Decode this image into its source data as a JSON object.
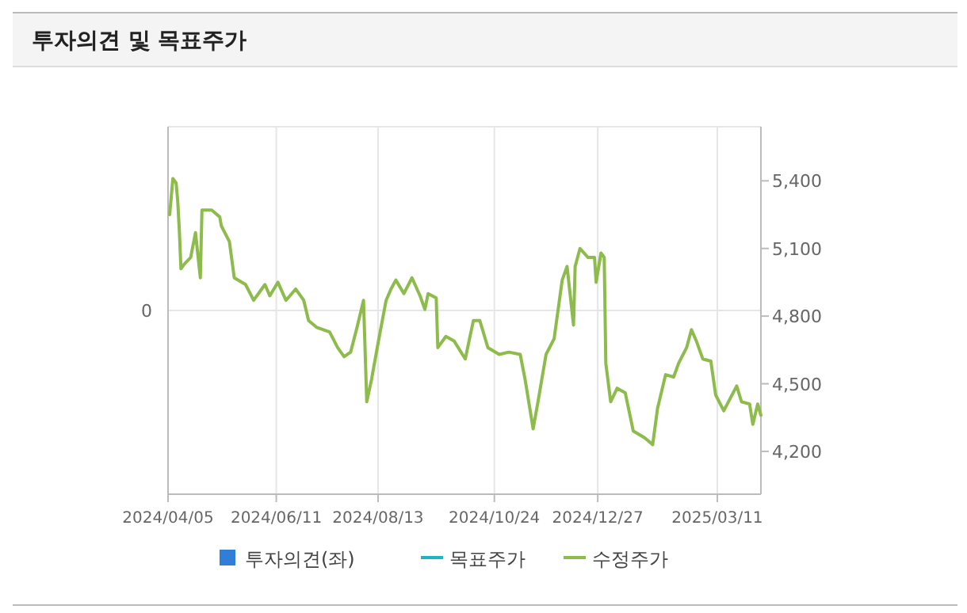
{
  "chart_data": {
    "type": "line",
    "title": "투자의견 및 목표주가",
    "xlim": [
      "2024-04-05",
      "2025-04-07"
    ],
    "xticks": [
      {
        "value": "2024-04-05",
        "label": "2024/04/05"
      },
      {
        "value": "2024-06-11",
        "label": "2024/06/11"
      },
      {
        "value": "2024-08-13",
        "label": "2024/08/13"
      },
      {
        "value": "2024-10-24",
        "label": "2024/10/24"
      },
      {
        "value": "2024-12-27",
        "label": "2024/12/27"
      },
      {
        "value": "2025-03-11",
        "label": "2025/03/11"
      }
    ],
    "annotations": [
      "0"
    ],
    "y2lim": [
      4010,
      5640
    ],
    "y2ticks": [
      {
        "value": 4200,
        "label": "4,200"
      },
      {
        "value": 4500,
        "label": "4,500"
      },
      {
        "value": 4800,
        "label": "4,800"
      },
      {
        "value": 5100,
        "label": "5,100"
      },
      {
        "value": 5400,
        "label": "5,400"
      }
    ],
    "grid": true,
    "legend": "bottom",
    "marker": "none",
    "line_style": "solid",
    "series": [
      {
        "name": "투자의견(좌)",
        "type": "bar",
        "color": "#2f7ed8",
        "axis": "y"
      },
      {
        "name": "목표주가",
        "color": "#1fb5c0",
        "axis": "y2"
      },
      {
        "name": "수정주가",
        "color": "#8dbb4c",
        "axis": "y2",
        "x": [
          "2024-04-06",
          "2024-04-08",
          "2024-04-10",
          "2024-04-11",
          "2024-04-12",
          "2024-04-13",
          "2024-04-15",
          "2024-04-19",
          "2024-04-22",
          "2024-04-25",
          "2024-04-26",
          "2024-04-29",
          "2024-05-02",
          "2024-05-07",
          "2024-05-08",
          "2024-05-13",
          "2024-05-16",
          "2024-05-23",
          "2024-05-28",
          "2024-06-04",
          "2024-06-07",
          "2024-06-12",
          "2024-06-17",
          "2024-06-23",
          "2024-06-28",
          "2024-07-01",
          "2024-07-06",
          "2024-07-14",
          "2024-07-19",
          "2024-07-23",
          "2024-07-27",
          "2024-07-31",
          "2024-08-04",
          "2024-08-06",
          "2024-08-09",
          "2024-08-13",
          "2024-08-18",
          "2024-08-21",
          "2024-08-24",
          "2024-08-29",
          "2024-09-03",
          "2024-09-08",
          "2024-09-11",
          "2024-09-13",
          "2024-09-18",
          "2024-09-19",
          "2024-09-24",
          "2024-09-29",
          "2024-10-06",
          "2024-10-11",
          "2024-10-15",
          "2024-10-20",
          "2024-10-27",
          "2024-11-02",
          "2024-11-09",
          "2024-11-12",
          "2024-11-17",
          "2024-11-20",
          "2024-11-25",
          "2024-11-30",
          "2024-12-05",
          "2024-12-08",
          "2024-12-12",
          "2024-12-13",
          "2024-12-16",
          "2024-12-21",
          "2024-12-25",
          "2024-12-26",
          "2024-12-29",
          "2024-12-31",
          "2025-01-01",
          "2025-01-04",
          "2025-01-08",
          "2025-01-13",
          "2025-01-18",
          "2025-01-25",
          "2025-01-30",
          "2025-02-02",
          "2025-02-07",
          "2025-02-12",
          "2025-02-15",
          "2025-02-20",
          "2025-02-23",
          "2025-02-26",
          "2025-03-02",
          "2025-03-07",
          "2025-03-10",
          "2025-03-15",
          "2025-03-23",
          "2025-03-26",
          "2025-03-31",
          "2025-04-02",
          "2025-04-05",
          "2025-04-07"
        ],
        "values": [
          5250,
          5410,
          5390,
          5310,
          5180,
          5010,
          5030,
          5060,
          5170,
          4970,
          5270,
          5270,
          5270,
          5240,
          5200,
          5130,
          4970,
          4940,
          4870,
          4940,
          4890,
          4950,
          4870,
          4920,
          4870,
          4780,
          4750,
          4730,
          4660,
          4620,
          4640,
          4750,
          4870,
          4420,
          4520,
          4680,
          4870,
          4920,
          4960,
          4900,
          4970,
          4890,
          4830,
          4900,
          4880,
          4660,
          4710,
          4690,
          4610,
          4780,
          4780,
          4660,
          4630,
          4640,
          4630,
          4520,
          4300,
          4420,
          4630,
          4700,
          4960,
          5020,
          4760,
          5020,
          5100,
          5060,
          5060,
          4950,
          5080,
          5060,
          4590,
          4420,
          4480,
          4460,
          4290,
          4260,
          4230,
          4390,
          4540,
          4530,
          4590,
          4660,
          4740,
          4690,
          4610,
          4600,
          4450,
          4380,
          4490,
          4420,
          4410,
          4320,
          4410,
          4360
        ]
      }
    ]
  }
}
